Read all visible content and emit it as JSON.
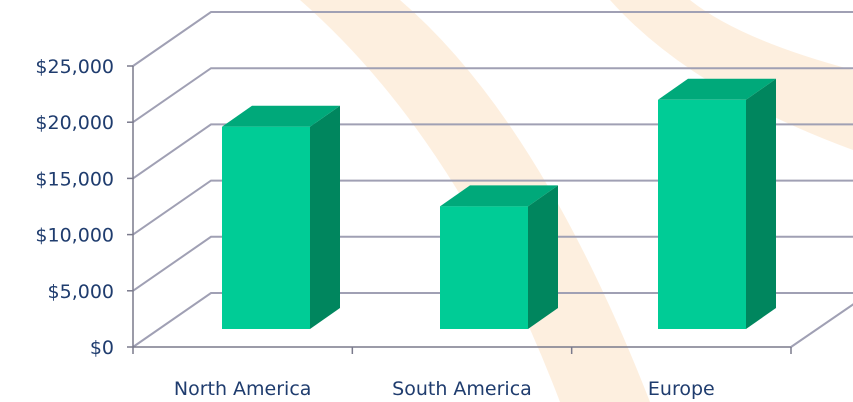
{
  "chart_data": {
    "type": "bar",
    "style": "3d-column",
    "categories": [
      "North America",
      "South America",
      "Europe"
    ],
    "values": [
      18800,
      11400,
      21300
    ],
    "y_ticks": [
      0,
      5000,
      10000,
      15000,
      20000,
      25000
    ],
    "y_tick_labels": [
      "$0",
      "$5,000",
      "$10,000",
      "$15,000",
      "$20,000",
      "$25,000"
    ],
    "ylim": [
      0,
      25000
    ],
    "title": "",
    "xlabel": "",
    "ylabel": "",
    "grid": true,
    "legend": "none",
    "colors": {
      "bar_front": "#00cc96",
      "bar_top": "#00a97a",
      "bar_side": "#00865e",
      "gridline": "#a0a0b4",
      "axis": "#7a7a8c",
      "label_text": "#1f3c6e",
      "background_decor": "#fdebd7"
    }
  }
}
